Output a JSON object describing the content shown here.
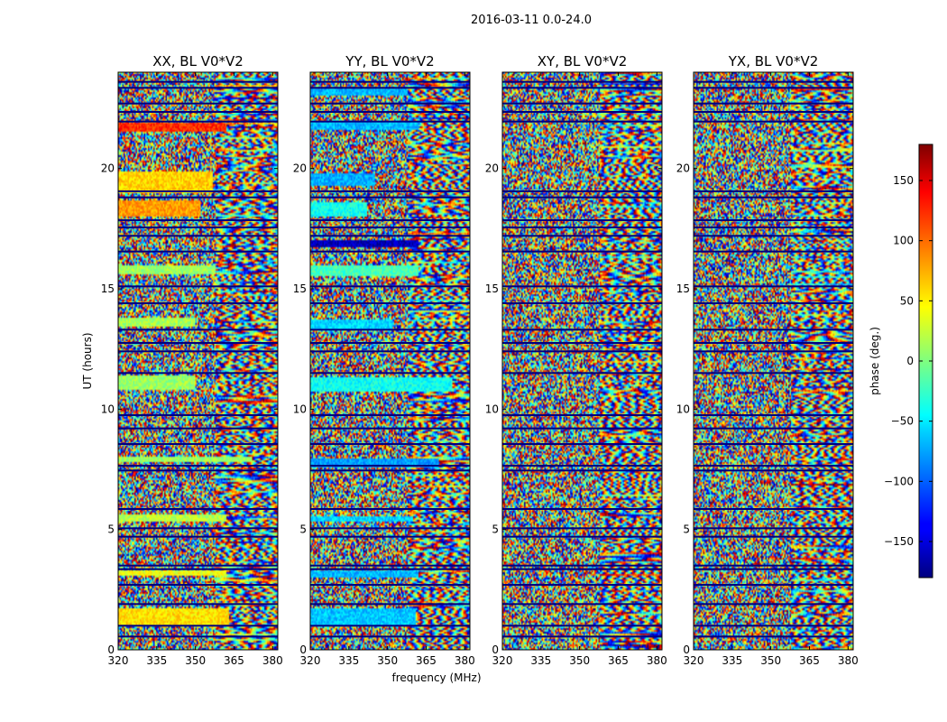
{
  "chart_data": {
    "type": "heatmap",
    "suptitle": "2016-03-11 0.0-24.0",
    "xlabel": "frequency (MHz)",
    "ylabel": "UT (hours)",
    "xlim": [
      320,
      382
    ],
    "ylim": [
      0,
      24
    ],
    "xticks": [
      320,
      335,
      350,
      365,
      380
    ],
    "yticks": [
      0,
      5,
      10,
      15,
      20
    ],
    "panels": [
      {
        "title": "XX, BL V0*V2",
        "features": [
          {
            "t0": 21.55,
            "t1": 21.9,
            "f1": 362,
            "phase": 120
          },
          {
            "t0": 19.0,
            "t1": 19.9,
            "f1": 357,
            "phase": 60
          },
          {
            "t0": 18.0,
            "t1": 18.7,
            "f1": 352,
            "phase": 80
          },
          {
            "t0": 15.6,
            "t1": 15.95,
            "f1": 358,
            "phase": 10
          },
          {
            "t0": 13.4,
            "t1": 13.8,
            "f1": 350,
            "phase": 15
          },
          {
            "t0": 10.8,
            "t1": 11.4,
            "f1": 350,
            "phase": 10
          },
          {
            "t0": 7.8,
            "t1": 8.0,
            "f1": 372,
            "phase": 10
          },
          {
            "t0": 5.35,
            "t1": 5.6,
            "f1": 362,
            "phase": 20
          },
          {
            "t0": 3.05,
            "t1": 3.3,
            "f1": 362,
            "phase": 40
          },
          {
            "t0": 1.0,
            "t1": 1.75,
            "f1": 363,
            "phase": 55
          }
        ]
      },
      {
        "title": "YY, BL V0*V2",
        "features": [
          {
            "t0": 23.05,
            "t1": 23.3,
            "f1": 358,
            "phase": -70
          },
          {
            "t0": 21.6,
            "t1": 21.95,
            "f1": 362,
            "phase": -70
          },
          {
            "t0": 19.3,
            "t1": 19.8,
            "f1": 345,
            "phase": -75
          },
          {
            "t0": 18.0,
            "t1": 18.6,
            "f1": 342,
            "phase": -40
          },
          {
            "t0": 16.75,
            "t1": 17.05,
            "f1": 362,
            "phase": -160
          },
          {
            "t0": 15.55,
            "t1": 15.95,
            "f1": 362,
            "phase": -20
          },
          {
            "t0": 13.3,
            "t1": 13.7,
            "f1": 352,
            "phase": -60
          },
          {
            "t0": 10.75,
            "t1": 11.3,
            "f1": 375,
            "phase": -40
          },
          {
            "t0": 7.6,
            "t1": 7.95,
            "f1": 370,
            "phase": -80
          },
          {
            "t0": 5.3,
            "t1": 5.55,
            "f1": 360,
            "phase": -60
          },
          {
            "t0": 3.0,
            "t1": 3.3,
            "f1": 362,
            "phase": -70
          },
          {
            "t0": 1.0,
            "t1": 1.75,
            "f1": 361,
            "phase": -65
          }
        ]
      },
      {
        "title": "XY, BL V0*V2",
        "features": []
      },
      {
        "title": "YX, BL V0*V2",
        "features": []
      }
    ],
    "colorbar": {
      "label": "phase (deg.)",
      "range": [
        -180,
        180
      ],
      "ticks": [
        -150,
        -100,
        -50,
        0,
        50,
        100,
        150
      ],
      "tick_labels": [
        "−150",
        "−100",
        "−50",
        "0",
        "50",
        "100",
        "150"
      ],
      "colormap": "jet"
    },
    "gap_bands_hours": [
      0.55,
      1.0,
      1.9,
      2.7,
      3.35,
      3.5,
      4.7,
      5.05,
      5.85,
      7.45,
      7.65,
      8.55,
      9.2,
      9.75,
      11.5,
      12.4,
      12.75,
      13.3,
      14.4,
      15.1,
      16.55,
      17.2,
      17.55,
      17.85,
      18.8,
      19.05,
      21.95,
      22.35,
      22.7,
      23.35,
      23.6
    ]
  }
}
